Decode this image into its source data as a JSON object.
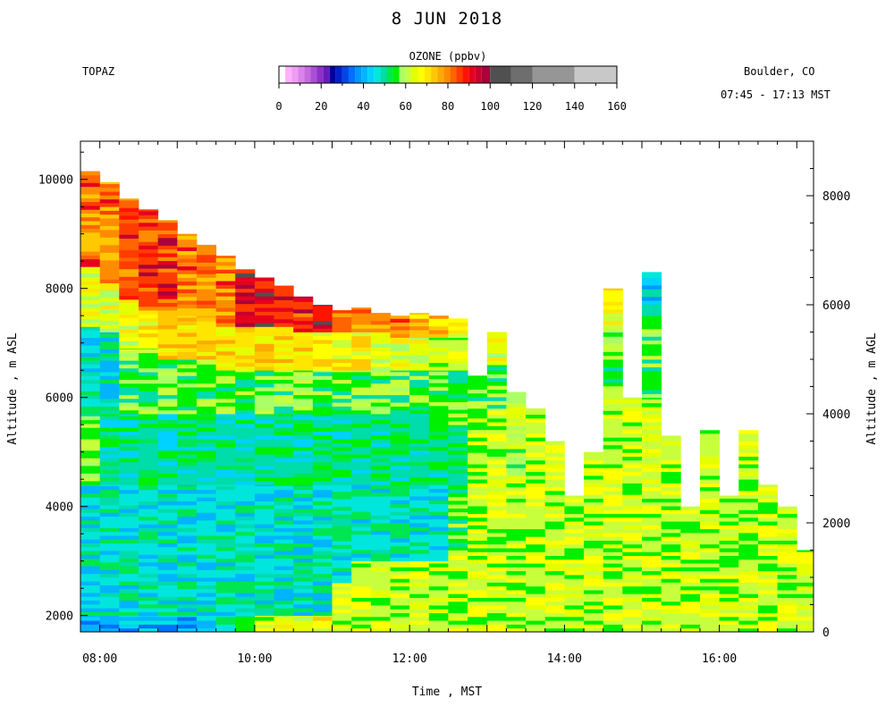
{
  "title": "8 JUN 2018",
  "station": "TOPAZ",
  "location": "Boulder, CO",
  "time_span": "07:45 - 17:13 MST",
  "colorbar": {
    "title": "OZONE (ppbv)",
    "ticks": [
      0,
      20,
      40,
      60,
      80,
      100,
      120,
      140,
      160
    ],
    "bins": [
      {
        "lo": 0,
        "hi": 3,
        "color": "#ffffff"
      },
      {
        "lo": 3,
        "hi": 6,
        "color": "#ffb0ff"
      },
      {
        "lo": 6,
        "hi": 9,
        "color": "#f09cf5"
      },
      {
        "lo": 9,
        "hi": 12,
        "color": "#dc82eb"
      },
      {
        "lo": 12,
        "hi": 15,
        "color": "#c76ae0"
      },
      {
        "lo": 15,
        "hi": 18,
        "color": "#a950d4"
      },
      {
        "lo": 18,
        "hi": 21,
        "color": "#8c32c8"
      },
      {
        "lo": 21,
        "hi": 24,
        "color": "#6a1aba"
      },
      {
        "lo": 24,
        "hi": 27,
        "color": "#0000a0"
      },
      {
        "lo": 27,
        "hi": 30,
        "color": "#0020c8"
      },
      {
        "lo": 30,
        "hi": 33,
        "color": "#0046e6"
      },
      {
        "lo": 33,
        "hi": 36,
        "color": "#0070ff"
      },
      {
        "lo": 36,
        "hi": 39,
        "color": "#0096ff"
      },
      {
        "lo": 39,
        "hi": 42,
        "color": "#00b4ff"
      },
      {
        "lo": 42,
        "hi": 45,
        "color": "#00d2ff"
      },
      {
        "lo": 45,
        "hi": 48,
        "color": "#00e6dc"
      },
      {
        "lo": 48,
        "hi": 51,
        "color": "#00dcaa"
      },
      {
        "lo": 51,
        "hi": 54,
        "color": "#00e650"
      },
      {
        "lo": 54,
        "hi": 57,
        "color": "#00f000"
      },
      {
        "lo": 57,
        "hi": 60,
        "color": "#aaff66"
      },
      {
        "lo": 60,
        "hi": 63,
        "color": "#c8ff3c"
      },
      {
        "lo": 63,
        "hi": 66,
        "color": "#e6ff00"
      },
      {
        "lo": 66,
        "hi": 69,
        "color": "#ffff00"
      },
      {
        "lo": 69,
        "hi": 72,
        "color": "#ffe600"
      },
      {
        "lo": 72,
        "hi": 75,
        "color": "#ffc800"
      },
      {
        "lo": 75,
        "hi": 78,
        "color": "#ffaa00"
      },
      {
        "lo": 78,
        "hi": 81,
        "color": "#ff8c00"
      },
      {
        "lo": 81,
        "hi": 84,
        "color": "#ff6400"
      },
      {
        "lo": 84,
        "hi": 87,
        "color": "#ff3c00"
      },
      {
        "lo": 87,
        "hi": 90,
        "color": "#ff1400"
      },
      {
        "lo": 90,
        "hi": 93,
        "color": "#e6001e"
      },
      {
        "lo": 93,
        "hi": 96,
        "color": "#c8002d"
      },
      {
        "lo": 96,
        "hi": 100,
        "color": "#aa003c"
      },
      {
        "lo": 100,
        "hi": 110,
        "color": "#505050"
      },
      {
        "lo": 110,
        "hi": 120,
        "color": "#6e6e6e"
      },
      {
        "lo": 120,
        "hi": 140,
        "color": "#969696"
      },
      {
        "lo": 140,
        "hi": 160,
        "color": "#c8c8c8"
      }
    ]
  },
  "chart_data": {
    "type": "heatmap",
    "variable": "OZONE (ppbv)",
    "xlabel": "Time , MST",
    "ylabel_left": "Altitude , m ASL",
    "ylabel_right": "Altitude , m AGL",
    "xlim": [
      "07:45",
      "17:13"
    ],
    "ylim_asl": [
      1700,
      10700
    ],
    "ylim_agl": [
      0,
      9000
    ],
    "x_ticks": [
      "08:00",
      "10:00",
      "12:00",
      "14:00",
      "16:00"
    ],
    "y_ticks_left": [
      2000,
      4000,
      6000,
      8000,
      10000
    ],
    "y_ticks_right": [
      0,
      2000,
      4000,
      6000,
      8000
    ],
    "profiles": [
      {
        "time": "07:45",
        "top_m": 10150,
        "layers": [
          [
            1700,
            2000,
            40
          ],
          [
            2000,
            4400,
            47
          ],
          [
            4400,
            5700,
            54
          ],
          [
            5700,
            7300,
            47
          ],
          [
            7300,
            8400,
            64
          ],
          [
            8400,
            10150,
            78
          ]
        ]
      },
      {
        "time": "08:00",
        "top_m": 9950,
        "layers": [
          [
            1700,
            2000,
            40
          ],
          [
            2000,
            4400,
            47
          ],
          [
            4400,
            5700,
            49
          ],
          [
            5700,
            7200,
            47
          ],
          [
            7200,
            8100,
            64
          ],
          [
            8100,
            9950,
            80
          ]
        ]
      },
      {
        "time": "08:15",
        "top_m": 9650,
        "layers": [
          [
            1700,
            2000,
            40
          ],
          [
            2000,
            4400,
            47
          ],
          [
            4400,
            5700,
            49
          ],
          [
            5700,
            6900,
            54
          ],
          [
            6900,
            7800,
            64
          ],
          [
            7800,
            9650,
            82
          ]
        ]
      },
      {
        "time": "08:30",
        "top_m": 9450,
        "layers": [
          [
            1700,
            2000,
            40
          ],
          [
            2000,
            4400,
            47
          ],
          [
            4400,
            5700,
            49
          ],
          [
            5700,
            6900,
            54
          ],
          [
            6900,
            7600,
            66
          ],
          [
            7600,
            9450,
            85
          ]
        ]
      },
      {
        "time": "08:45",
        "top_m": 9250,
        "layers": [
          [
            1700,
            2000,
            40
          ],
          [
            2000,
            4400,
            47
          ],
          [
            4400,
            5700,
            49
          ],
          [
            5700,
            6700,
            54
          ],
          [
            6700,
            7600,
            70
          ],
          [
            7600,
            9250,
            85
          ]
        ]
      },
      {
        "time": "09:00",
        "top_m": 9000,
        "layers": [
          [
            1700,
            2000,
            40
          ],
          [
            2000,
            4400,
            47
          ],
          [
            4400,
            5700,
            49
          ],
          [
            5700,
            6700,
            54
          ],
          [
            6700,
            7500,
            70
          ],
          [
            7500,
            9000,
            80
          ]
        ]
      },
      {
        "time": "09:15",
        "top_m": 8800,
        "layers": [
          [
            1700,
            2000,
            40
          ],
          [
            2000,
            4400,
            47
          ],
          [
            4400,
            5700,
            49
          ],
          [
            5700,
            6700,
            54
          ],
          [
            6700,
            7500,
            70
          ],
          [
            7500,
            8800,
            80
          ]
        ]
      },
      {
        "time": "09:30",
        "top_m": 8600,
        "layers": [
          [
            1700,
            2000,
            47
          ],
          [
            2000,
            4400,
            47
          ],
          [
            4400,
            5700,
            49
          ],
          [
            5700,
            6500,
            54
          ],
          [
            6500,
            7300,
            70
          ],
          [
            7300,
            8600,
            80
          ]
        ]
      },
      {
        "time": "09:45",
        "top_m": 8350,
        "layers": [
          [
            1700,
            2000,
            54
          ],
          [
            2000,
            4400,
            47
          ],
          [
            4400,
            5700,
            49
          ],
          [
            5700,
            6500,
            54
          ],
          [
            6500,
            7300,
            70
          ],
          [
            7300,
            8350,
            92
          ]
        ]
      },
      {
        "time": "10:00",
        "top_m": 8200,
        "layers": [
          [
            1700,
            2000,
            60
          ],
          [
            2000,
            4400,
            47
          ],
          [
            4400,
            5700,
            49
          ],
          [
            5700,
            6500,
            54
          ],
          [
            6500,
            7300,
            70
          ],
          [
            7300,
            8200,
            92
          ]
        ]
      },
      {
        "time": "10:15",
        "top_m": 8050,
        "layers": [
          [
            1700,
            2000,
            64
          ],
          [
            2000,
            4400,
            47
          ],
          [
            4400,
            5700,
            49
          ],
          [
            5700,
            6500,
            54
          ],
          [
            6500,
            7300,
            70
          ],
          [
            7300,
            8050,
            85
          ]
        ]
      },
      {
        "time": "10:30",
        "top_m": 7850,
        "layers": [
          [
            1700,
            2000,
            64
          ],
          [
            2000,
            4400,
            47
          ],
          [
            4400,
            5700,
            49
          ],
          [
            5700,
            6500,
            54
          ],
          [
            6500,
            7200,
            70
          ],
          [
            7200,
            7850,
            85
          ]
        ]
      },
      {
        "time": "10:45",
        "top_m": 7700,
        "layers": [
          [
            1700,
            2000,
            66
          ],
          [
            2000,
            4400,
            47
          ],
          [
            4400,
            5700,
            49
          ],
          [
            5700,
            6500,
            54
          ],
          [
            6500,
            7200,
            66
          ],
          [
            7200,
            7700,
            88
          ]
        ]
      },
      {
        "time": "11:00",
        "top_m": 7600,
        "layers": [
          [
            1700,
            2600,
            60
          ],
          [
            2600,
            4400,
            47
          ],
          [
            4400,
            5700,
            49
          ],
          [
            5700,
            6500,
            54
          ],
          [
            6500,
            7200,
            66
          ],
          [
            7200,
            7600,
            82
          ]
        ]
      },
      {
        "time": "11:15",
        "top_m": 7650,
        "layers": [
          [
            1700,
            3000,
            60
          ],
          [
            3000,
            4400,
            47
          ],
          [
            4400,
            5700,
            49
          ],
          [
            5700,
            6500,
            54
          ],
          [
            6500,
            7200,
            66
          ],
          [
            7200,
            7650,
            80
          ]
        ]
      },
      {
        "time": "11:30",
        "top_m": 7550,
        "layers": [
          [
            1700,
            3000,
            60
          ],
          [
            3000,
            4400,
            47
          ],
          [
            4400,
            5700,
            49
          ],
          [
            5700,
            6500,
            54
          ],
          [
            6500,
            7200,
            64
          ],
          [
            7200,
            7550,
            80
          ]
        ]
      },
      {
        "time": "11:45",
        "top_m": 7500,
        "layers": [
          [
            1700,
            3000,
            60
          ],
          [
            3000,
            4400,
            47
          ],
          [
            4400,
            5700,
            49
          ],
          [
            5700,
            6500,
            54
          ],
          [
            6500,
            7100,
            64
          ],
          [
            7100,
            7500,
            76
          ]
        ]
      },
      {
        "time": "12:00",
        "top_m": 7550,
        "layers": [
          [
            1700,
            3000,
            60
          ],
          [
            3000,
            4400,
            47
          ],
          [
            4400,
            5700,
            49
          ],
          [
            5700,
            6500,
            54
          ],
          [
            6500,
            7100,
            64
          ],
          [
            7100,
            7550,
            72
          ]
        ]
      },
      {
        "time": "12:15",
        "top_m": 7500,
        "layers": [
          [
            1700,
            3000,
            60
          ],
          [
            3000,
            4400,
            47
          ],
          [
            4400,
            5500,
            49
          ],
          [
            5500,
            6500,
            54
          ],
          [
            6500,
            7100,
            60
          ],
          [
            7100,
            7500,
            72
          ]
        ]
      },
      {
        "time": "12:30",
        "top_m": 7450,
        "layers": [
          [
            1700,
            3200,
            60
          ],
          [
            3200,
            4400,
            54
          ],
          [
            4400,
            5500,
            49
          ],
          [
            5500,
            6500,
            54
          ],
          [
            6500,
            7100,
            60
          ],
          [
            7100,
            7450,
            68
          ]
        ]
      },
      {
        "time": "12:45",
        "top_m": 6400,
        "layers": [
          [
            1700,
            4500,
            60
          ],
          [
            4500,
            5800,
            60
          ],
          [
            5800,
            6400,
            54
          ]
        ]
      },
      {
        "time": "13:00",
        "top_m": 7200,
        "layers": [
          [
            1700,
            4500,
            60
          ],
          [
            4500,
            5800,
            60
          ],
          [
            5800,
            6600,
            54
          ],
          [
            6600,
            7200,
            64
          ]
        ]
      },
      {
        "time": "13:15",
        "top_m": 6100,
        "layers": [
          [
            1700,
            4500,
            60
          ],
          [
            4500,
            6100,
            58
          ]
        ]
      },
      {
        "time": "13:30",
        "top_m": 5800,
        "layers": [
          [
            1700,
            5800,
            60
          ]
        ]
      },
      {
        "time": "13:45",
        "top_m": 5200,
        "layers": [
          [
            1700,
            5200,
            60
          ]
        ]
      },
      {
        "time": "14:00",
        "top_m": 4200,
        "layers": [
          [
            1700,
            4200,
            60
          ]
        ]
      },
      {
        "time": "14:15",
        "top_m": 5000,
        "layers": [
          [
            1700,
            5000,
            60
          ]
        ]
      },
      {
        "time": "14:30",
        "top_m": 8000,
        "layers": [
          [
            1700,
            6000,
            60
          ],
          [
            6000,
            7200,
            54
          ],
          [
            7200,
            8000,
            68
          ]
        ]
      },
      {
        "time": "14:45",
        "top_m": 6000,
        "layers": [
          [
            1700,
            6000,
            60
          ]
        ]
      },
      {
        "time": "15:00",
        "top_m": 8300,
        "layers": [
          [
            1700,
            6000,
            60
          ],
          [
            6000,
            7500,
            54
          ],
          [
            7500,
            8300,
            44
          ]
        ]
      },
      {
        "time": "15:15",
        "top_m": 5300,
        "layers": [
          [
            1700,
            5300,
            60
          ]
        ]
      },
      {
        "time": "15:30",
        "top_m": 4000,
        "layers": [
          [
            1700,
            4000,
            60
          ]
        ]
      },
      {
        "time": "15:45",
        "top_m": 5400,
        "layers": [
          [
            1700,
            5400,
            60
          ]
        ]
      },
      {
        "time": "16:00",
        "top_m": 4200,
        "layers": [
          [
            1700,
            4200,
            60
          ]
        ]
      },
      {
        "time": "16:15",
        "top_m": 5400,
        "layers": [
          [
            1700,
            5400,
            60
          ]
        ]
      },
      {
        "time": "16:30",
        "top_m": 4400,
        "layers": [
          [
            1700,
            4400,
            60
          ]
        ]
      },
      {
        "time": "16:45",
        "top_m": 4000,
        "layers": [
          [
            1700,
            4000,
            60
          ]
        ]
      },
      {
        "time": "17:00",
        "top_m": 3200,
        "layers": [
          [
            1700,
            3200,
            60
          ]
        ]
      }
    ]
  }
}
